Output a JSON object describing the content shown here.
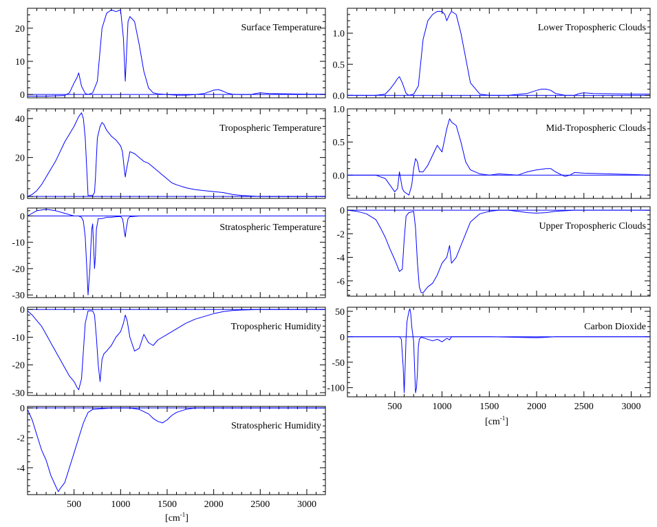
{
  "figure": {
    "left_xlabel": "[cm",
    "left_xlabel_sup": "-1",
    "left_xlabel_end": "]",
    "right_xlabel": "[cm",
    "right_xlabel_sup": "-1",
    "right_xlabel_end": "]"
  },
  "colors": {
    "line": "#0000ff",
    "frame": "#000000",
    "background": "#ffffff"
  },
  "chart_data": [
    {
      "id": "surface-temperature",
      "type": "line",
      "title": "Surface Temperature",
      "xlim": [
        0,
        3200
      ],
      "ylim": [
        -1,
        26
      ],
      "yticks": [
        0,
        10,
        20
      ],
      "ytick_labels": [
        "0",
        "10",
        "20"
      ],
      "show_xtick_labels": false,
      "x": [
        0,
        100,
        200,
        300,
        400,
        450,
        500,
        530,
        550,
        580,
        620,
        650,
        700,
        750,
        800,
        850,
        900,
        950,
        1000,
        1030,
        1050,
        1060,
        1080,
        1100,
        1150,
        1200,
        1250,
        1300,
        1350,
        1400,
        1500,
        1600,
        1700,
        1800,
        1900,
        1950,
        2000,
        2050,
        2100,
        2150,
        2200,
        2300,
        2400,
        2450,
        2500,
        2600,
        2800,
        3000,
        3200
      ],
      "values": [
        -0.5,
        -0.5,
        -0.5,
        -0.4,
        -0.3,
        0.5,
        3.5,
        5.0,
        6.5,
        2.5,
        0.3,
        0.0,
        0.5,
        4.0,
        20.0,
        24.5,
        25.5,
        25.0,
        25.5,
        17.0,
        4.0,
        10.0,
        22.0,
        23.5,
        22.0,
        15.0,
        7.0,
        2.0,
        0.5,
        0.2,
        0.0,
        -0.2,
        -0.2,
        0.0,
        0.3,
        0.8,
        1.3,
        1.5,
        1.0,
        0.4,
        0.1,
        0.0,
        0.0,
        0.3,
        0.5,
        0.3,
        0.2,
        0.1,
        0.1
      ]
    },
    {
      "id": "tropospheric-temperature",
      "type": "line",
      "title": "Tropospheric Temperature",
      "xlim": [
        0,
        3200
      ],
      "ylim": [
        -1,
        45
      ],
      "yticks": [
        0,
        20,
        40
      ],
      "ytick_labels": [
        "0",
        "20",
        "40"
      ],
      "show_xtick_labels": false,
      "x": [
        0,
        50,
        100,
        150,
        200,
        250,
        300,
        350,
        400,
        450,
        500,
        550,
        580,
        600,
        620,
        650,
        700,
        720,
        730,
        750,
        780,
        800,
        820,
        850,
        900,
        950,
        1000,
        1020,
        1040,
        1050,
        1060,
        1080,
        1100,
        1150,
        1200,
        1250,
        1300,
        1350,
        1400,
        1450,
        1500,
        1550,
        1600,
        1700,
        1800,
        1900,
        2000,
        2100,
        2200,
        2300,
        2500,
        3000,
        3200
      ],
      "values": [
        0.0,
        1.0,
        3.0,
        6.0,
        10.0,
        14.0,
        18.0,
        23.0,
        28.0,
        32.0,
        36.0,
        41.0,
        43.0,
        40.0,
        30.0,
        0.5,
        0.5,
        2.0,
        10.0,
        30.0,
        36.0,
        38.0,
        37.0,
        34.0,
        31.0,
        29.0,
        26.0,
        23.0,
        14.0,
        10.0,
        13.0,
        18.0,
        23.0,
        22.0,
        20.0,
        18.0,
        17.0,
        15.0,
        13.0,
        11.0,
        9.0,
        7.0,
        6.0,
        4.5,
        3.5,
        3.0,
        2.5,
        2.0,
        1.0,
        0.5,
        0.0,
        0.0,
        0.0
      ]
    },
    {
      "id": "stratospheric-temperature",
      "type": "line",
      "title": "Stratospheric Temperature",
      "xlim": [
        0,
        3200
      ],
      "ylim": [
        -31,
        3
      ],
      "yticks": [
        0,
        -10,
        -20,
        -30
      ],
      "ytick_labels": [
        "0",
        "-10",
        "-20",
        "-30"
      ],
      "show_xtick_labels": false,
      "x": [
        0,
        100,
        200,
        300,
        400,
        450,
        500,
        550,
        580,
        600,
        620,
        640,
        650,
        660,
        670,
        680,
        690,
        700,
        720,
        730,
        740,
        750,
        760,
        800,
        850,
        900,
        950,
        1000,
        1020,
        1030,
        1040,
        1050,
        1060,
        1080,
        1100,
        1200,
        1500,
        2000,
        2500,
        3000,
        3200
      ],
      "values": [
        0.0,
        2.0,
        2.5,
        2.0,
        1.0,
        0.5,
        0.0,
        0.0,
        -0.5,
        -2.0,
        -8.0,
        -22.0,
        -30.0,
        -25.0,
        -20.0,
        -12.0,
        -5.0,
        -3.0,
        -20.0,
        -15.0,
        -5.0,
        -3.0,
        -1.0,
        -1.0,
        -0.5,
        -0.5,
        -0.3,
        -0.2,
        -1.0,
        -3.0,
        -6.0,
        -8.0,
        -5.0,
        -1.0,
        -0.3,
        0.0,
        0.0,
        0.0,
        0.0,
        0.0,
        0.0
      ]
    },
    {
      "id": "tropospheric-humidity",
      "type": "line",
      "title": "Tropospheric Humidity",
      "xlim": [
        0,
        3200
      ],
      "ylim": [
        -31,
        0.8
      ],
      "yticks": [
        0,
        -10,
        -20,
        -30
      ],
      "ytick_labels": [
        "0",
        "-10",
        "-20",
        "-30"
      ],
      "show_xtick_labels": false,
      "x": [
        0,
        50,
        100,
        150,
        200,
        250,
        300,
        350,
        400,
        450,
        500,
        530,
        550,
        580,
        600,
        620,
        650,
        700,
        720,
        740,
        760,
        780,
        800,
        820,
        850,
        900,
        950,
        1000,
        1030,
        1050,
        1070,
        1100,
        1150,
        1200,
        1250,
        1300,
        1350,
        1400,
        1500,
        1600,
        1700,
        1800,
        1900,
        2000,
        2100,
        2200,
        2300,
        2500,
        3000,
        3200
      ],
      "values": [
        -0.5,
        -2.0,
        -4.0,
        -6.0,
        -9.0,
        -12.0,
        -15.0,
        -18.0,
        -21.0,
        -24.0,
        -26.0,
        -28.0,
        -29.0,
        -25.0,
        -15.0,
        -5.0,
        -0.5,
        -0.5,
        -2.0,
        -10.0,
        -20.0,
        -26.0,
        -18.0,
        -16.0,
        -15.0,
        -13.0,
        -10.0,
        -8.0,
        -5.0,
        -2.0,
        -4.0,
        -10.0,
        -15.0,
        -14.0,
        -9.0,
        -12.0,
        -13.0,
        -11.0,
        -9.0,
        -7.0,
        -5.0,
        -3.5,
        -2.5,
        -1.5,
        -0.8,
        -0.4,
        -0.2,
        0.0,
        0.0,
        0.0
      ]
    },
    {
      "id": "stratospheric-humidity",
      "type": "line",
      "title": "Stratospheric Humidity",
      "xlim": [
        0,
        3200
      ],
      "ylim": [
        -5.8,
        0.1
      ],
      "yticks": [
        0,
        -2,
        -4
      ],
      "ytick_labels": [
        "0",
        "-2",
        "-4"
      ],
      "xticks": [
        500,
        1000,
        1500,
        2000,
        2500,
        3000
      ],
      "xtick_labels": [
        "500",
        "1000",
        "1500",
        "2000",
        "2500",
        "3000"
      ],
      "show_xtick_labels": true,
      "x": [
        0,
        50,
        100,
        150,
        200,
        250,
        300,
        330,
        350,
        400,
        450,
        500,
        550,
        600,
        650,
        700,
        800,
        900,
        1000,
        1100,
        1200,
        1300,
        1350,
        1400,
        1450,
        1500,
        1550,
        1600,
        1700,
        1800,
        2000,
        2500,
        3000,
        3200
      ],
      "values": [
        -0.1,
        -0.8,
        -1.8,
        -2.8,
        -3.5,
        -4.5,
        -5.2,
        -5.6,
        -5.4,
        -5.0,
        -4.0,
        -3.0,
        -2.0,
        -1.0,
        -0.3,
        -0.1,
        -0.05,
        0.0,
        0.0,
        0.0,
        -0.1,
        -0.4,
        -0.7,
        -0.9,
        -1.0,
        -0.8,
        -0.5,
        -0.3,
        -0.1,
        0.0,
        0.0,
        0.0,
        0.0,
        0.0
      ]
    },
    {
      "id": "lower-tropospheric-clouds",
      "type": "line",
      "title": "Lower Tropospheric Clouds",
      "xlim": [
        0,
        3200
      ],
      "ylim": [
        -0.04,
        1.4
      ],
      "yticks": [
        0.0,
        0.5,
        1.0
      ],
      "ytick_labels": [
        "0.0",
        "0.5",
        "1.0"
      ],
      "show_xtick_labels": false,
      "x": [
        0,
        100,
        200,
        300,
        400,
        450,
        500,
        530,
        550,
        580,
        620,
        650,
        700,
        750,
        800,
        850,
        900,
        950,
        1000,
        1030,
        1050,
        1080,
        1100,
        1150,
        1200,
        1250,
        1300,
        1400,
        1500,
        1700,
        1900,
        2000,
        2050,
        2100,
        2150,
        2200,
        2300,
        2400,
        2450,
        2500,
        2600,
        3000,
        3200
      ],
      "values": [
        0.0,
        0.0,
        0.0,
        0.0,
        0.02,
        0.1,
        0.2,
        0.27,
        0.3,
        0.2,
        0.03,
        0.0,
        0.02,
        0.15,
        0.9,
        1.2,
        1.3,
        1.35,
        1.35,
        1.3,
        1.2,
        1.3,
        1.35,
        1.3,
        1.0,
        0.6,
        0.2,
        0.02,
        0.0,
        0.0,
        0.03,
        0.08,
        0.1,
        0.1,
        0.08,
        0.03,
        0.0,
        0.0,
        0.03,
        0.04,
        0.03,
        0.02,
        0.02
      ]
    },
    {
      "id": "mid-tropospheric-clouds",
      "type": "line",
      "title": "Mid-Tropospheric Clouds",
      "xlim": [
        0,
        3200
      ],
      "ylim": [
        -0.35,
        1.0
      ],
      "yticks": [
        0.0,
        0.5,
        1.0
      ],
      "ytick_labels": [
        "0.0",
        "0.5",
        "1.0"
      ],
      "show_xtick_labels": false,
      "x": [
        0,
        100,
        200,
        300,
        400,
        450,
        500,
        530,
        550,
        580,
        600,
        650,
        680,
        700,
        720,
        740,
        760,
        800,
        850,
        900,
        950,
        1000,
        1050,
        1080,
        1100,
        1150,
        1200,
        1250,
        1300,
        1400,
        1500,
        1600,
        1800,
        1900,
        2000,
        2100,
        2150,
        2200,
        2300,
        2350,
        2400,
        2500,
        3000,
        3200
      ],
      "values": [
        0.0,
        0.0,
        0.0,
        0.0,
        -0.05,
        -0.15,
        -0.25,
        -0.2,
        0.05,
        -0.2,
        -0.25,
        -0.3,
        -0.15,
        0.1,
        0.25,
        0.2,
        0.05,
        0.05,
        0.15,
        0.3,
        0.45,
        0.35,
        0.7,
        0.85,
        0.8,
        0.75,
        0.5,
        0.2,
        0.08,
        0.02,
        0.0,
        0.02,
        0.0,
        0.05,
        0.08,
        0.1,
        0.1,
        0.05,
        -0.02,
        0.0,
        0.04,
        0.03,
        0.01,
        0.0
      ]
    },
    {
      "id": "upper-tropospheric-clouds",
      "type": "line",
      "title": "Upper Tropospheric Clouds",
      "xlim": [
        0,
        3200
      ],
      "ylim": [
        -7.3,
        0.3
      ],
      "yticks": [
        0,
        -2,
        -4,
        -6
      ],
      "ytick_labels": [
        "0",
        "-2",
        "-4",
        "-6"
      ],
      "show_xtick_labels": false,
      "x": [
        0,
        100,
        200,
        300,
        350,
        400,
        450,
        500,
        550,
        580,
        600,
        620,
        650,
        700,
        720,
        740,
        760,
        780,
        800,
        850,
        900,
        950,
        1000,
        1050,
        1080,
        1100,
        1150,
        1200,
        1250,
        1300,
        1400,
        1500,
        1600,
        1700,
        1800,
        1900,
        2000,
        2100,
        2200,
        2400,
        2600,
        3000,
        3200
      ],
      "values": [
        0.0,
        -0.1,
        -0.3,
        -0.8,
        -1.5,
        -2.3,
        -3.3,
        -4.2,
        -5.2,
        -5.0,
        -2.5,
        -0.5,
        -0.2,
        -0.1,
        -1.5,
        -4.5,
        -6.5,
        -7.0,
        -7.0,
        -6.5,
        -6.2,
        -5.5,
        -4.5,
        -4.0,
        -3.0,
        -4.5,
        -4.0,
        -3.0,
        -2.0,
        -1.0,
        -0.3,
        -0.1,
        0.0,
        0.0,
        -0.1,
        -0.2,
        -0.25,
        -0.2,
        -0.1,
        0.0,
        0.0,
        0.0,
        0.0
      ]
    },
    {
      "id": "carbon-dioxide",
      "type": "line",
      "title": "Carbon Dioxide",
      "xlim": [
        0,
        3200
      ],
      "ylim": [
        -118,
        58
      ],
      "yticks": [
        50,
        0,
        -50,
        -100
      ],
      "ytick_labels": [
        "50",
        "0",
        "-50",
        "-100"
      ],
      "xticks": [
        500,
        1000,
        1500,
        2000,
        2500,
        3000
      ],
      "xtick_labels": [
        "500",
        "1000",
        "1500",
        "2000",
        "2500",
        "3000"
      ],
      "show_xtick_labels": true,
      "x": [
        0,
        400,
        500,
        550,
        570,
        590,
        600,
        610,
        620,
        630,
        650,
        660,
        670,
        680,
        700,
        710,
        720,
        730,
        740,
        750,
        760,
        780,
        800,
        900,
        950,
        1000,
        1050,
        1080,
        1100,
        1500,
        2000,
        2100,
        2200,
        2500,
        3000,
        3200
      ],
      "values": [
        0,
        0,
        0,
        0,
        -5,
        -60,
        -110,
        -60,
        0,
        30,
        50,
        55,
        45,
        20,
        -10,
        -60,
        -110,
        -100,
        -70,
        -20,
        -5,
        -1,
        -2,
        -8,
        -5,
        -10,
        -3,
        -6,
        0,
        0,
        -2,
        -1,
        0,
        0,
        0,
        0
      ]
    }
  ]
}
